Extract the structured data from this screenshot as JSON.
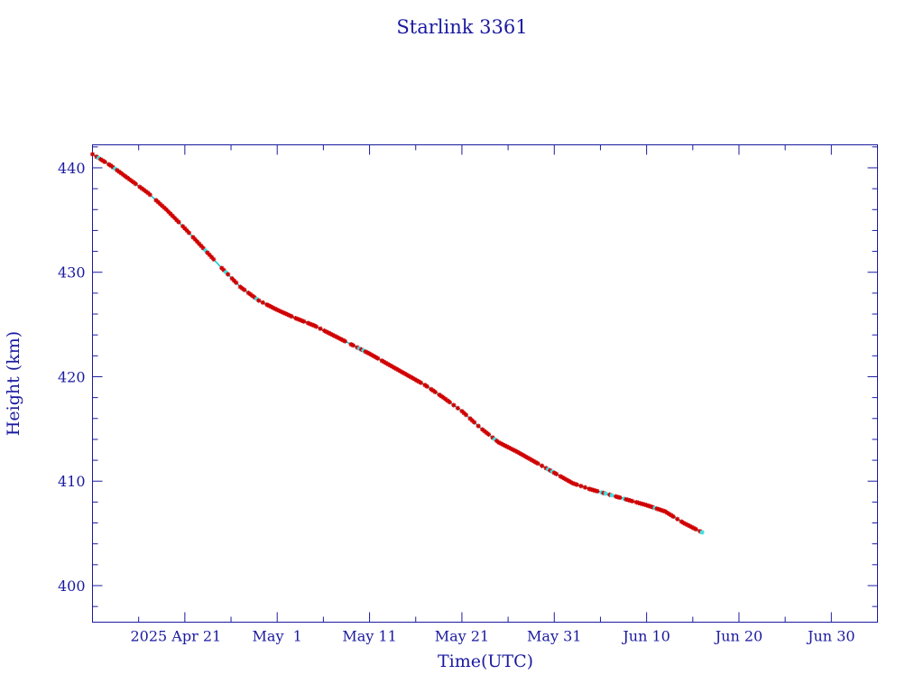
{
  "chart_data": {
    "type": "line",
    "title": "Starlink 3361",
    "xlabel": "Time(UTC)",
    "ylabel": "Height (km)",
    "x_type": "date",
    "xlim": [
      "2025-04-11",
      "2025-07-05"
    ],
    "ylim": [
      396.5,
      442.2
    ],
    "x_ticks": [
      {
        "date": "2025-04-21",
        "label": "2025 Apr 21"
      },
      {
        "date": "2025-05-01",
        "label": "May  1"
      },
      {
        "date": "2025-05-11",
        "label": "May 11"
      },
      {
        "date": "2025-05-21",
        "label": "May 21"
      },
      {
        "date": "2025-05-31",
        "label": "May 31"
      },
      {
        "date": "2025-06-10",
        "label": "Jun 10"
      },
      {
        "date": "2025-06-20",
        "label": "Jun 20"
      },
      {
        "date": "2025-06-30",
        "label": "Jun 30"
      }
    ],
    "y_ticks": [
      400,
      410,
      420,
      430,
      440
    ],
    "line_color": "#00ced1",
    "marker_color": "#d00000",
    "highlight_color": "#40e0e0",
    "series": [
      {
        "x": [
          "2025-04-11",
          "2025-04-13",
          "2025-04-15",
          "2025-04-17",
          "2025-04-19",
          "2025-04-21",
          "2025-04-23",
          "2025-04-25",
          "2025-04-27",
          "2025-04-29",
          "2025-05-01",
          "2025-05-03",
          "2025-05-05",
          "2025-05-07",
          "2025-05-09",
          "2025-05-11",
          "2025-05-13",
          "2025-05-15",
          "2025-05-17",
          "2025-05-19",
          "2025-05-21",
          "2025-05-23",
          "2025-05-25",
          "2025-05-27",
          "2025-05-29",
          "2025-05-31",
          "2025-06-02",
          "2025-06-04",
          "2025-06-06",
          "2025-06-08",
          "2025-06-10",
          "2025-06-12",
          "2025-06-14",
          "2025-06-16"
        ],
        "y": [
          441.3,
          440.2,
          438.9,
          437.6,
          436.0,
          434.2,
          432.3,
          430.4,
          428.6,
          427.3,
          426.4,
          425.6,
          424.9,
          424.0,
          423.1,
          422.2,
          421.2,
          420.2,
          419.2,
          418.0,
          416.7,
          415.1,
          413.7,
          412.8,
          411.8,
          410.8,
          409.8,
          409.2,
          408.7,
          408.2,
          407.7,
          407.1,
          406.0,
          405.1
        ]
      }
    ]
  }
}
